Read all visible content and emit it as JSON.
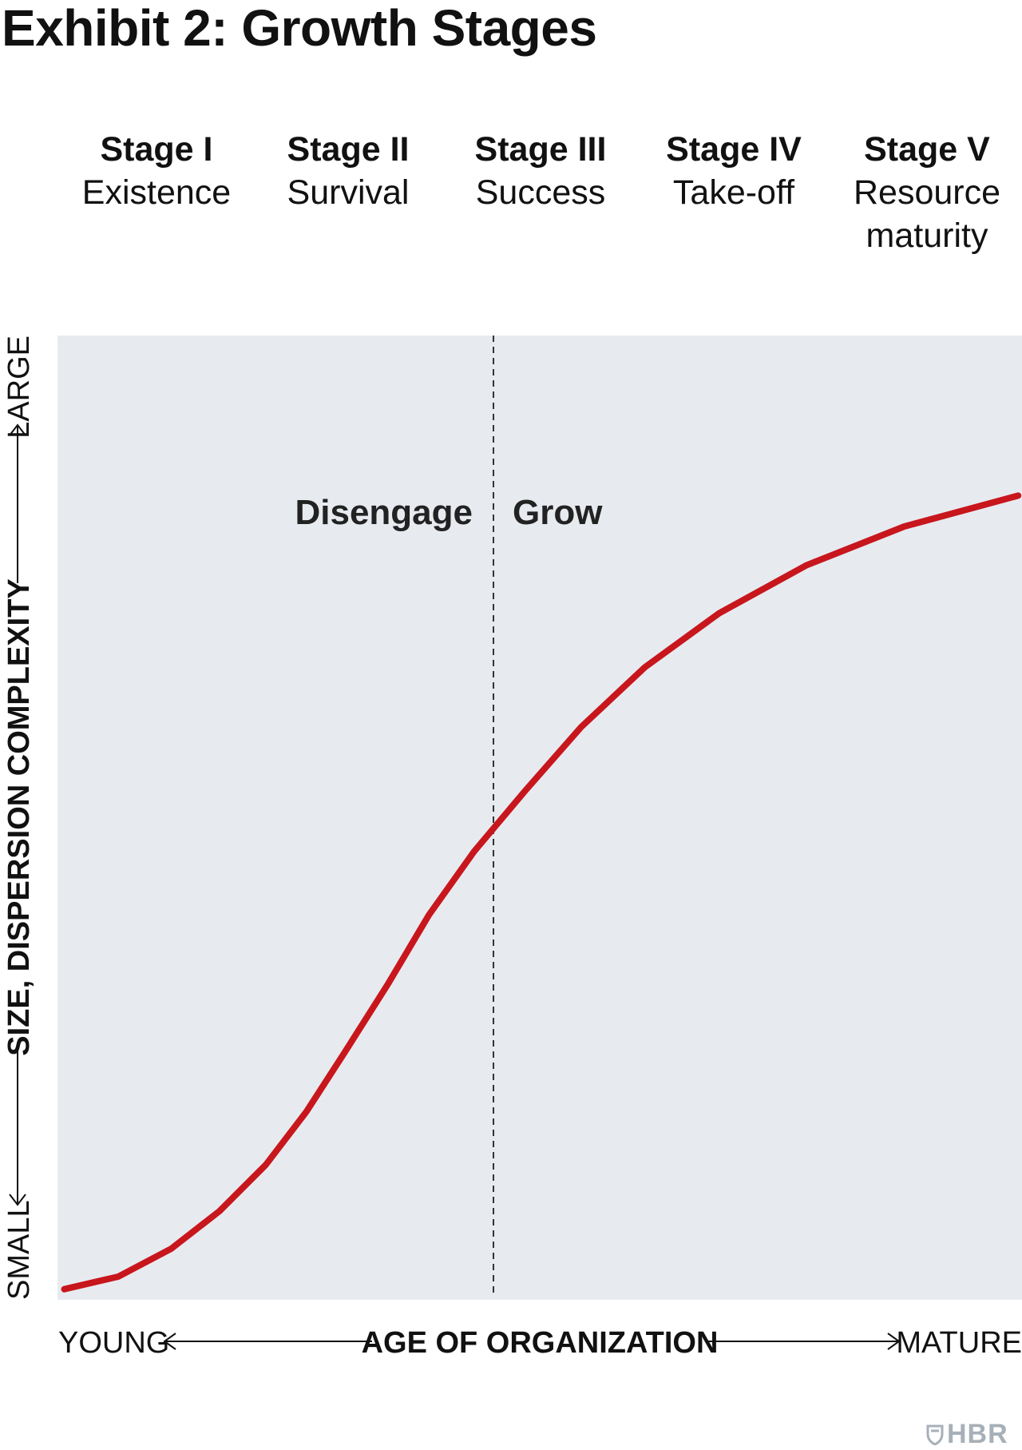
{
  "exhibit_title": "Exhibit 2: Growth Stages",
  "stages": [
    {
      "num": "Stage I",
      "name": "Existence"
    },
    {
      "num": "Stage II",
      "name": "Survival"
    },
    {
      "num": "Stage III",
      "name": "Success"
    },
    {
      "num": "Stage IV",
      "name": "Take-off"
    },
    {
      "num": "Stage V",
      "name": "Resource\nmaturity"
    }
  ],
  "logo_text": "HBR",
  "colors": {
    "plot_background": "#e7ebf0",
    "curve": "#c8161d",
    "text": "#111111",
    "logo": "#a7b0b8"
  },
  "chart_data": {
    "type": "line",
    "title": "Exhibit 2: Growth Stages",
    "xlabel": "AGE OF ORGANIZATION",
    "ylabel": "SIZE, DISPERSION COMPLEXITY",
    "x_axis_ends": {
      "low": "YOUNG",
      "high": "MATURE"
    },
    "y_axis_ends": {
      "low": "SMALL",
      "high": "LARGE"
    },
    "xlim": [
      0,
      1
    ],
    "ylim": [
      0,
      1
    ],
    "grid": false,
    "divider": {
      "x": 0.452,
      "style": "dashed",
      "left_label": "Disengage",
      "right_label": "Grow"
    },
    "series": [
      {
        "values": [
          [
            0.007,
            0.011
          ],
          [
            0.063,
            0.024
          ],
          [
            0.118,
            0.053
          ],
          [
            0.168,
            0.092
          ],
          [
            0.216,
            0.14
          ],
          [
            0.258,
            0.195
          ],
          [
            0.298,
            0.257
          ],
          [
            0.343,
            0.328
          ],
          [
            0.385,
            0.399
          ],
          [
            0.432,
            0.465
          ],
          [
            0.485,
            0.528
          ],
          [
            0.543,
            0.594
          ],
          [
            0.609,
            0.656
          ],
          [
            0.686,
            0.712
          ],
          [
            0.777,
            0.762
          ],
          [
            0.878,
            0.802
          ],
          [
            0.996,
            0.834
          ]
        ]
      }
    ]
  }
}
